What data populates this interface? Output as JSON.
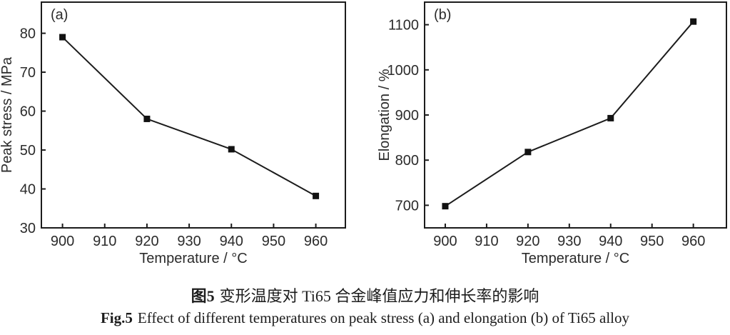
{
  "figure": {
    "caption_zh_prefix": "图5",
    "caption_zh_text": "变形温度对 Ti65 合金峰值应力和伸长率的影响",
    "caption_en_prefix": "Fig.5",
    "caption_en_text": "Effect of different temperatures on peak stress (a) and elongation (b) of Ti65 alloy"
  },
  "chart_data": [
    {
      "type": "line",
      "panel_label": "(a)",
      "x": [
        900,
        920,
        940,
        960
      ],
      "y": [
        79,
        58,
        50.2,
        38.2
      ],
      "series": [
        {
          "name": "Peak stress",
          "values": [
            79,
            58,
            50.2,
            38.2
          ]
        }
      ],
      "title": "",
      "xlabel": "Temperature / °C",
      "ylabel": "Peak stress / MPa",
      "xlim": [
        895,
        967
      ],
      "ylim": [
        30,
        88
      ],
      "xticks": [
        900,
        910,
        920,
        930,
        940,
        950,
        960
      ],
      "yticks": [
        30,
        40,
        50,
        60,
        70,
        80
      ],
      "marker": "filled-square",
      "line_color": "#1c1c1c",
      "grid": false,
      "legend": "none"
    },
    {
      "type": "line",
      "panel_label": "(b)",
      "x": [
        900,
        920,
        940,
        960
      ],
      "y": [
        698,
        818,
        893,
        1107
      ],
      "series": [
        {
          "name": "Elongation",
          "values": [
            698,
            818,
            893,
            1107
          ]
        }
      ],
      "title": "",
      "xlabel": "Temperature / °C",
      "ylabel": "Elongation / %",
      "xlim": [
        895,
        968
      ],
      "ylim": [
        650,
        1150
      ],
      "xticks": [
        900,
        910,
        920,
        930,
        940,
        950,
        960
      ],
      "yticks": [
        700,
        800,
        900,
        1000,
        1100
      ],
      "marker": "filled-square",
      "line_color": "#1c1c1c",
      "grid": false,
      "legend": "none"
    }
  ]
}
